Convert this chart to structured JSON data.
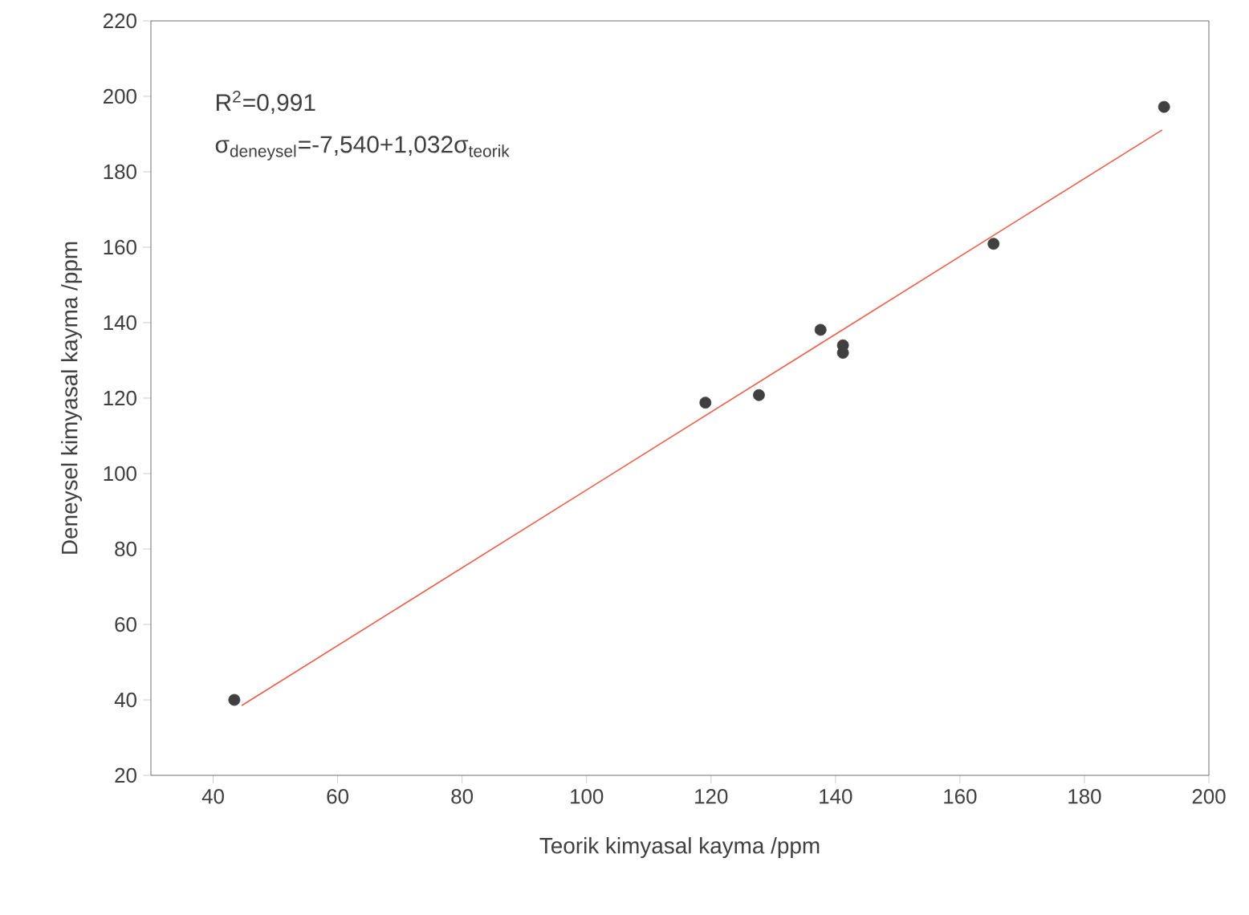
{
  "chart_data": {
    "type": "scatter",
    "xlabel": "Teorik kimyasal kayma  /ppm",
    "ylabel": "Deneysel kimyasal kayma /ppm",
    "annotations": [
      "R$^{2}$=0,991",
      "σ$_{deneysel}$=-7,540+1,032σ$_{teorik}$"
    ],
    "xlim": [
      30,
      200
    ],
    "ylim": [
      20,
      220
    ],
    "xticks": [
      40,
      60,
      80,
      100,
      120,
      140,
      160,
      180,
      200
    ],
    "yticks": [
      20,
      40,
      60,
      80,
      100,
      120,
      140,
      160,
      180,
      200,
      220
    ],
    "grid": false,
    "series": [
      {
        "marker": "circle",
        "color": "#404040",
        "x": [
          43.4,
          119.1,
          127.7,
          137.6,
          141.2,
          141.2,
          165.4,
          192.8
        ],
        "values": [
          40,
          118.8,
          120.8,
          138.1,
          134,
          132,
          160.9,
          197.2
        ]
      },
      {
        "type": "line",
        "marker": "none",
        "color": "#e8604c",
        "x": [
          44.6,
          192.5
        ],
        "values": [
          38.5,
          191.1
        ]
      }
    ]
  }
}
